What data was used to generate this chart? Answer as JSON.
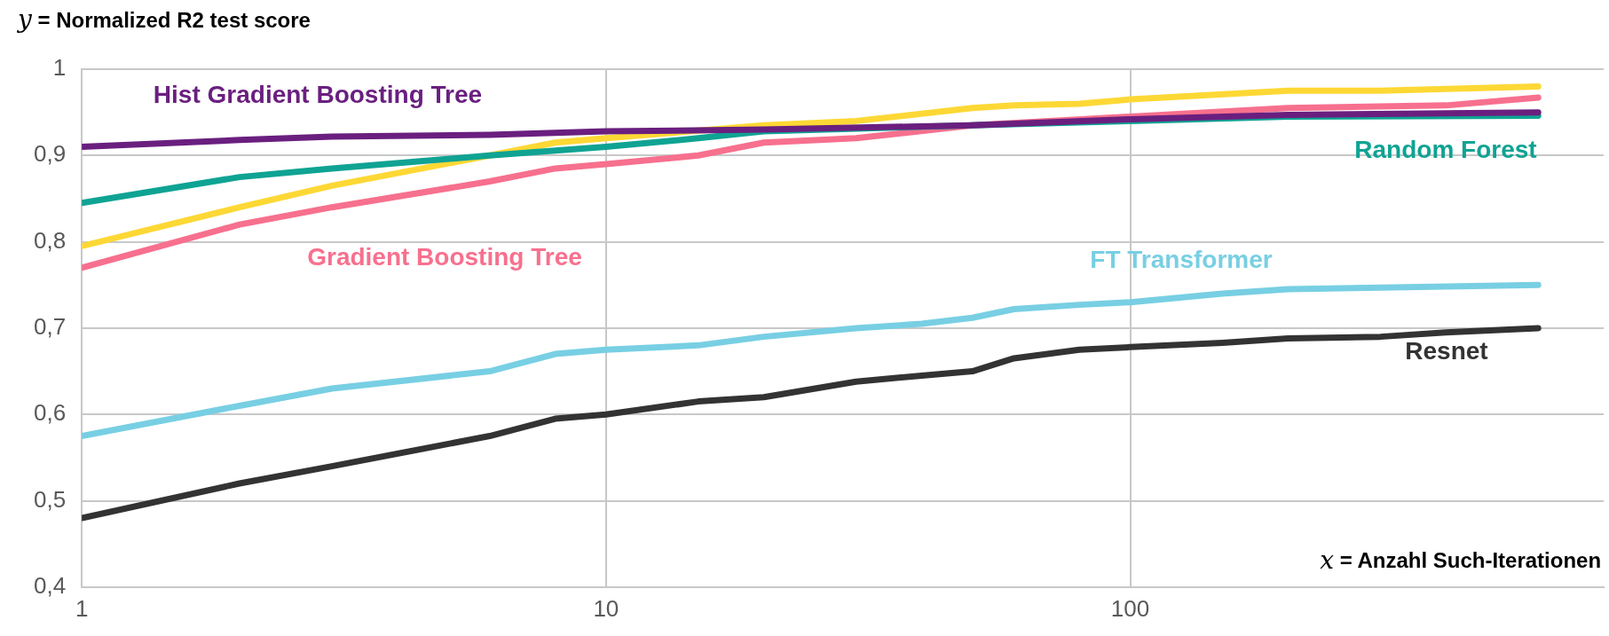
{
  "chart_data": {
    "type": "line",
    "xlabel": "x = Anzahl Such-Iterationen",
    "ylabel": "y = Normalized R2 test score",
    "log": "x",
    "xlim": [
      1,
      800
    ],
    "xticks": [
      1,
      10,
      100
    ],
    "ylim": [
      0.4,
      1
    ],
    "yticks": [
      {
        "value": 0.4,
        "label": "0,4"
      },
      {
        "value": 0.5,
        "label": "0,5"
      },
      {
        "value": 0.6,
        "label": "0,6"
      },
      {
        "value": 0.7,
        "label": "0,7"
      },
      {
        "value": 0.8,
        "label": "0,8"
      },
      {
        "value": 0.9,
        "label": "0,9"
      },
      1
    ],
    "grid": true,
    "legend": false,
    "marker": "none",
    "line_style": "solid",
    "series": [
      {
        "name": "Hist Gradient Boosting Tree",
        "color": "#6a1f7f",
        "x": [
          1,
          2,
          3,
          6,
          10,
          20,
          50,
          100,
          200,
          600
        ],
        "values": [
          0.91,
          0.918,
          0.922,
          0.924,
          0.928,
          0.93,
          0.935,
          0.942,
          0.947,
          0.95
        ]
      },
      {
        "name": "Random Forest",
        "color": "#0fa393",
        "x": [
          1,
          2,
          3,
          6,
          10,
          15,
          20,
          50,
          100,
          200,
          600
        ],
        "values": [
          0.845,
          0.875,
          0.885,
          0.9,
          0.91,
          0.92,
          0.928,
          0.935,
          0.94,
          0.945,
          0.946
        ]
      },
      {
        "color": "#fdd835",
        "x": [
          1,
          2,
          3,
          6,
          8,
          10,
          20,
          30,
          50,
          60,
          80,
          100,
          200,
          300,
          600
        ],
        "values": [
          0.795,
          0.84,
          0.865,
          0.9,
          0.915,
          0.92,
          0.935,
          0.94,
          0.955,
          0.958,
          0.96,
          0.965,
          0.975,
          0.975,
          0.98
        ]
      },
      {
        "name": "Gradient Boosting Tree",
        "color": "#f7708e",
        "x": [
          1,
          2,
          3,
          6,
          8,
          10,
          15,
          20,
          30,
          50,
          100,
          200,
          400,
          600
        ],
        "values": [
          0.77,
          0.82,
          0.84,
          0.87,
          0.885,
          0.89,
          0.9,
          0.915,
          0.92,
          0.935,
          0.945,
          0.955,
          0.958,
          0.967
        ]
      },
      {
        "name": "FT Transformer",
        "color": "#78cfe3",
        "x": [
          1,
          2,
          3,
          6,
          8,
          10,
          15,
          20,
          30,
          40,
          50,
          60,
          80,
          100,
          150,
          200,
          300,
          600
        ],
        "values": [
          0.575,
          0.61,
          0.63,
          0.65,
          0.67,
          0.675,
          0.68,
          0.69,
          0.7,
          0.705,
          0.712,
          0.722,
          0.727,
          0.73,
          0.74,
          0.745,
          0.747,
          0.75
        ]
      },
      {
        "name": "Resnet",
        "color": "#333333",
        "x": [
          1,
          2,
          3,
          6,
          8,
          10,
          15,
          20,
          30,
          40,
          50,
          60,
          80,
          100,
          150,
          200,
          300,
          400,
          600
        ],
        "values": [
          0.48,
          0.52,
          0.54,
          0.575,
          0.595,
          0.6,
          0.615,
          0.62,
          0.638,
          0.645,
          0.65,
          0.665,
          0.675,
          0.678,
          0.683,
          0.688,
          0.69,
          0.695,
          0.7
        ]
      }
    ]
  }
}
